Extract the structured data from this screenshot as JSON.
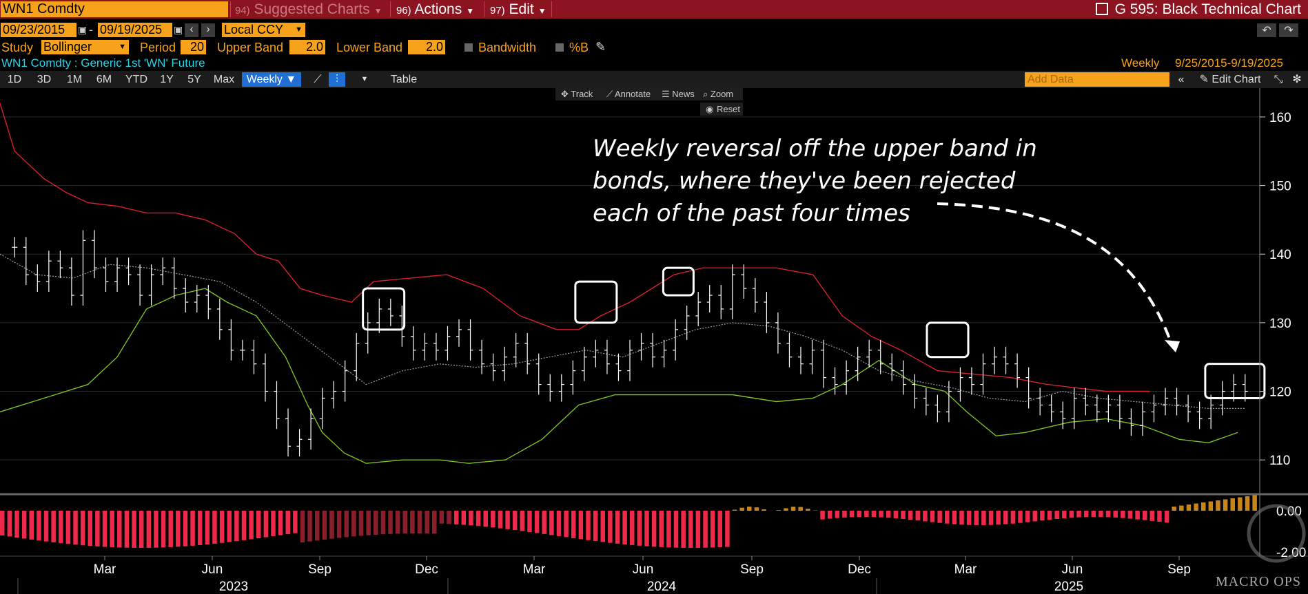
{
  "header": {
    "ticker": "WN1 Comdty",
    "menus": [
      {
        "num": "94)",
        "label": "Suggested Charts",
        "dim": true
      },
      {
        "num": "96)",
        "label": "Actions",
        "dim": false
      },
      {
        "num": "97)",
        "label": "Edit",
        "dim": false
      }
    ],
    "title": "G 595: Black Technical Chart"
  },
  "range": {
    "start": "09/23/2015",
    "end": "09/19/2025",
    "dash": "-",
    "currency": "Local CCY"
  },
  "study": {
    "study_label": "Study",
    "study_value": "Bollinger",
    "period_label": "Period",
    "period_value": "20",
    "upper_label": "Upper Band",
    "upper_value": "2.0",
    "lower_label": "Lower Band",
    "lower_value": "2.0",
    "bandwidth_label": "Bandwidth",
    "pctb_label": "%B"
  },
  "security": {
    "name": "WN1 Comdty : Generic 1st 'WN' Future",
    "frequency": "Weekly",
    "date_range": "9/25/2015-9/19/2025"
  },
  "tabs": [
    "1D",
    "3D",
    "1M",
    "6M",
    "YTD",
    "1Y",
    "5Y",
    "Max"
  ],
  "selected_tab": "Weekly ▼",
  "table_label": "Table",
  "add_data_placeholder": "Add Data",
  "edit_chart_label": "Edit Chart",
  "tools": {
    "track": "Track",
    "annotate": "Annotate",
    "news": "News",
    "zoom": "Zoom",
    "reset": "Reset"
  },
  "annotation": {
    "lines": [
      "Weekly reversal off the upper band in",
      "bonds, where they've been rejected",
      "each of the past four times"
    ]
  },
  "watermark": "MACRO OPS",
  "colors": {
    "upper_band": "#d8202e",
    "lower_band": "#7cc225",
    "middle_band": "#a0a0a0",
    "bars": "#ffffff",
    "neg_hist": "#f0284a",
    "neg_hist_dark": "#8a1f2c",
    "pos_hist": "#c8861a"
  },
  "chart_data": {
    "type": "line",
    "title": "",
    "x_tick_labels": [
      "Mar",
      "Jun",
      "Sep",
      "Dec",
      "Mar",
      "Jun",
      "Sep",
      "Dec",
      "Mar",
      "Jun",
      "Sep"
    ],
    "x_year_labels": [
      "2023",
      "2024",
      "2025"
    ],
    "y_ticks": [
      110,
      120,
      130,
      140,
      150,
      160
    ],
    "ylim": [
      105,
      162
    ],
    "x_range_weeks": 144,
    "series": [
      {
        "name": "",
        "role": "upper_band",
        "values": [
          [
            0,
            162
          ],
          [
            2,
            155
          ],
          [
            6,
            151
          ],
          [
            9,
            149
          ],
          [
            12,
            147.5
          ],
          [
            16,
            147
          ],
          [
            20,
            146
          ],
          [
            24,
            146
          ],
          [
            28,
            145
          ],
          [
            32,
            143
          ],
          [
            35,
            140
          ],
          [
            38,
            139
          ],
          [
            41,
            135
          ],
          [
            44,
            134
          ],
          [
            48,
            133
          ],
          [
            51,
            136
          ],
          [
            56,
            136.5
          ],
          [
            61,
            137
          ],
          [
            66,
            135
          ],
          [
            71,
            131
          ],
          [
            76,
            129
          ],
          [
            79,
            129
          ],
          [
            82,
            131
          ],
          [
            86,
            133
          ],
          [
            89,
            135
          ],
          [
            92,
            137
          ],
          [
            96,
            138
          ],
          [
            101,
            138
          ],
          [
            106,
            138
          ],
          [
            111,
            137
          ],
          [
            115,
            131
          ],
          [
            119,
            128
          ],
          [
            123,
            126
          ],
          [
            128,
            123
          ],
          [
            133,
            122.5
          ],
          [
            138,
            122
          ],
          [
            143,
            121
          ],
          [
            151,
            120
          ],
          [
            157,
            120
          ]
        ]
      },
      {
        "name": "",
        "role": "lower_band",
        "values": [
          [
            0,
            117
          ],
          [
            6,
            119
          ],
          [
            12,
            121
          ],
          [
            16,
            125
          ],
          [
            20,
            132
          ],
          [
            24,
            134
          ],
          [
            28,
            135
          ],
          [
            31,
            133
          ],
          [
            35,
            131
          ],
          [
            39,
            125
          ],
          [
            42,
            118
          ],
          [
            44,
            114
          ],
          [
            47,
            111
          ],
          [
            50,
            109.5
          ],
          [
            55,
            110
          ],
          [
            60,
            110
          ],
          [
            64,
            109.5
          ],
          [
            69,
            110
          ],
          [
            74,
            113
          ],
          [
            79,
            118
          ],
          [
            84,
            119.5
          ],
          [
            89,
            119.5
          ],
          [
            94,
            119.5
          ],
          [
            100,
            119.5
          ],
          [
            106,
            118.5
          ],
          [
            111,
            119
          ],
          [
            115,
            121
          ],
          [
            120,
            124.5
          ],
          [
            125,
            121
          ],
          [
            129,
            120
          ],
          [
            132,
            117
          ],
          [
            136,
            113.5
          ],
          [
            140,
            114
          ],
          [
            146,
            115.5
          ],
          [
            151,
            116
          ],
          [
            156,
            115
          ],
          [
            161,
            113
          ],
          [
            165,
            112.5
          ],
          [
            169,
            114
          ]
        ]
      },
      {
        "name": "",
        "role": "middle_band",
        "values": [
          [
            0,
            140
          ],
          [
            5,
            137
          ],
          [
            10,
            136.5
          ],
          [
            15,
            138.5
          ],
          [
            20,
            138
          ],
          [
            25,
            137
          ],
          [
            30,
            136
          ],
          [
            35,
            133
          ],
          [
            40,
            129
          ],
          [
            45,
            125
          ],
          [
            50,
            121
          ],
          [
            55,
            123
          ],
          [
            60,
            124
          ],
          [
            65,
            123.5
          ],
          [
            70,
            124
          ],
          [
            75,
            125
          ],
          [
            80,
            126
          ],
          [
            85,
            125
          ],
          [
            90,
            127
          ],
          [
            95,
            129
          ],
          [
            100,
            130
          ],
          [
            105,
            129.5
          ],
          [
            110,
            128
          ],
          [
            115,
            126
          ],
          [
            120,
            123
          ],
          [
            125,
            121.5
          ],
          [
            130,
            120.5
          ],
          [
            135,
            119
          ],
          [
            140,
            118.5
          ],
          [
            145,
            120
          ],
          [
            150,
            119
          ],
          [
            155,
            118.5
          ],
          [
            160,
            118
          ],
          [
            165,
            117.5
          ],
          [
            170,
            117.5
          ]
        ]
      }
    ],
    "bars_close": [
      141,
      137,
      136,
      139,
      138,
      134,
      142,
      138,
      136,
      138,
      137,
      134,
      137,
      138,
      135,
      133,
      134,
      132,
      129,
      126,
      126,
      124,
      120,
      116,
      112,
      113,
      116,
      119,
      120,
      123,
      127,
      130,
      132,
      131,
      128,
      126,
      127,
      126,
      128,
      129,
      126,
      124,
      123,
      125,
      127,
      124,
      121,
      120,
      121,
      123,
      125,
      126,
      124,
      123,
      126,
      127,
      125,
      126,
      129,
      131,
      133,
      134,
      132,
      137,
      135,
      133,
      130,
      127,
      125,
      124,
      126,
      122,
      121,
      123,
      125,
      126,
      124,
      123,
      121,
      119,
      118,
      117,
      120,
      122,
      121,
      124,
      125,
      124,
      122,
      119,
      118,
      117,
      116,
      119,
      118,
      117,
      118,
      116,
      115,
      117,
      118,
      119,
      118,
      117,
      116,
      118,
      120,
      121,
      120
    ],
    "histogram": {
      "name": "",
      "ylim": [
        -3,
        1
      ],
      "y_ticks": [
        0,
        -2
      ],
      "y_tick_labels": [
        "0.00",
        "-2.00"
      ]
    },
    "boxes": [
      {
        "x_week": 52,
        "y_low": 129,
        "y_high": 135
      },
      {
        "x_week": 81,
        "y_low": 130,
        "y_high": 136
      },
      {
        "x_week": 93,
        "y_low": 134,
        "y_high": 138
      },
      {
        "x_week": 129,
        "y_low": 125,
        "y_high": 130
      },
      {
        "x_week": 167,
        "y_low": 119,
        "y_high": 124
      }
    ]
  }
}
